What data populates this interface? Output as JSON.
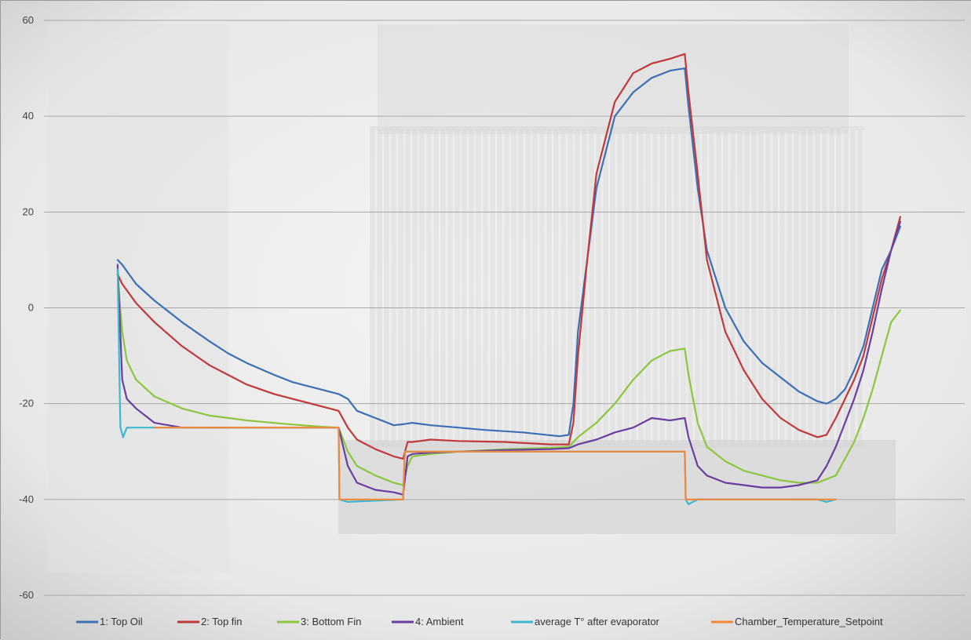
{
  "chart_data": {
    "type": "line",
    "title": "",
    "xlabel": "",
    "ylabel": "",
    "ylim": [
      -60,
      60
    ],
    "yticks": [
      60,
      40,
      20,
      0,
      -20,
      -40,
      -60
    ],
    "grid": true,
    "legend_placement": "bottom",
    "background": "faded photo of a transformer inside a test chamber",
    "x_note": "x axis unlabeled (time); x values are relative positions 0-100 along the axis",
    "series": [
      {
        "name": "1: Top Oil",
        "color": "#3d6fb5",
        "points": [
          [
            8.0,
            10
          ],
          [
            8.5,
            9
          ],
          [
            10,
            5
          ],
          [
            12,
            1.5
          ],
          [
            15,
            -3
          ],
          [
            18,
            -7
          ],
          [
            20,
            -9.5
          ],
          [
            22,
            -11.5
          ],
          [
            25,
            -14
          ],
          [
            27,
            -15.5
          ],
          [
            30,
            -17
          ],
          [
            32,
            -18
          ],
          [
            33,
            -19
          ],
          [
            34,
            -21.5
          ],
          [
            36,
            -23
          ],
          [
            38,
            -24.5
          ],
          [
            39,
            -24.3
          ],
          [
            40,
            -24
          ],
          [
            42,
            -24.5
          ],
          [
            45,
            -25
          ],
          [
            48,
            -25.5
          ],
          [
            52,
            -26
          ],
          [
            56,
            -26.8
          ],
          [
            57,
            -26.5
          ],
          [
            57.5,
            -20
          ],
          [
            58,
            -5
          ],
          [
            59,
            10
          ],
          [
            60,
            25
          ],
          [
            62,
            40
          ],
          [
            64,
            45
          ],
          [
            66,
            48
          ],
          [
            68,
            49.5
          ],
          [
            69.6,
            50
          ],
          [
            70,
            42
          ],
          [
            71,
            25
          ],
          [
            72,
            12
          ],
          [
            74,
            0
          ],
          [
            76,
            -7
          ],
          [
            78,
            -11.5
          ],
          [
            80,
            -14.5
          ],
          [
            82,
            -17.5
          ],
          [
            84,
            -19.5
          ],
          [
            85,
            -20
          ],
          [
            86,
            -19
          ],
          [
            87,
            -17
          ],
          [
            88,
            -13
          ],
          [
            89,
            -8
          ],
          [
            90,
            0
          ],
          [
            91,
            8
          ],
          [
            92,
            12
          ],
          [
            93,
            17
          ]
        ]
      },
      {
        "name": "2: Top fin",
        "color": "#c0393b",
        "points": [
          [
            8.0,
            7
          ],
          [
            8.5,
            5
          ],
          [
            10,
            1
          ],
          [
            12,
            -3
          ],
          [
            15,
            -8
          ],
          [
            18,
            -12
          ],
          [
            20,
            -14
          ],
          [
            22,
            -16
          ],
          [
            25,
            -18
          ],
          [
            28,
            -19.5
          ],
          [
            30,
            -20.5
          ],
          [
            32,
            -21.5
          ],
          [
            33,
            -25
          ],
          [
            34,
            -27.5
          ],
          [
            36,
            -29.5
          ],
          [
            38,
            -31
          ],
          [
            39,
            -31.5
          ],
          [
            39.5,
            -28
          ],
          [
            40,
            -28
          ],
          [
            42,
            -27.5
          ],
          [
            45,
            -27.8
          ],
          [
            50,
            -28
          ],
          [
            55,
            -28.5
          ],
          [
            57,
            -28.5
          ],
          [
            57.5,
            -24
          ],
          [
            58,
            -10
          ],
          [
            59,
            10
          ],
          [
            60,
            28
          ],
          [
            62,
            43
          ],
          [
            64,
            49
          ],
          [
            66,
            51
          ],
          [
            68,
            52
          ],
          [
            69.6,
            53
          ],
          [
            70,
            45
          ],
          [
            71,
            28
          ],
          [
            72,
            10
          ],
          [
            74,
            -5
          ],
          [
            76,
            -13
          ],
          [
            78,
            -19
          ],
          [
            80,
            -23
          ],
          [
            82,
            -25.5
          ],
          [
            84,
            -27
          ],
          [
            85,
            -26.5
          ],
          [
            86,
            -23
          ],
          [
            87,
            -19
          ],
          [
            88,
            -15
          ],
          [
            89,
            -10
          ],
          [
            90,
            -2
          ],
          [
            91,
            6
          ],
          [
            92,
            12
          ],
          [
            93,
            19
          ]
        ]
      },
      {
        "name": "3: Bottom Fin",
        "color": "#8cc63f",
        "points": [
          [
            8.0,
            7
          ],
          [
            8.5,
            -5
          ],
          [
            9,
            -11
          ],
          [
            10,
            -15
          ],
          [
            12,
            -18.5
          ],
          [
            15,
            -21
          ],
          [
            18,
            -22.5
          ],
          [
            22,
            -23.5
          ],
          [
            26,
            -24.2
          ],
          [
            30,
            -24.8
          ],
          [
            32,
            -25
          ],
          [
            33,
            -30
          ],
          [
            34,
            -33
          ],
          [
            36,
            -35
          ],
          [
            38,
            -36.5
          ],
          [
            39,
            -37
          ],
          [
            39.5,
            -33
          ],
          [
            40,
            -31
          ],
          [
            42,
            -30.5
          ],
          [
            45,
            -30
          ],
          [
            50,
            -29.5
          ],
          [
            55,
            -29.2
          ],
          [
            57,
            -29
          ],
          [
            58,
            -27
          ],
          [
            60,
            -24
          ],
          [
            62,
            -20
          ],
          [
            64,
            -15
          ],
          [
            66,
            -11
          ],
          [
            68,
            -9
          ],
          [
            69.6,
            -8.5
          ],
          [
            70,
            -14
          ],
          [
            71,
            -24
          ],
          [
            72,
            -29
          ],
          [
            74,
            -32
          ],
          [
            76,
            -34
          ],
          [
            78,
            -35
          ],
          [
            80,
            -36
          ],
          [
            82,
            -36.5
          ],
          [
            84,
            -36.5
          ],
          [
            86,
            -35
          ],
          [
            88,
            -28
          ],
          [
            89,
            -23
          ],
          [
            90,
            -17
          ],
          [
            91,
            -10
          ],
          [
            92,
            -3
          ],
          [
            93,
            -0.5
          ]
        ]
      },
      {
        "name": "4: Ambient",
        "color": "#6a3ea1",
        "points": [
          [
            8.0,
            9
          ],
          [
            8.5,
            -15
          ],
          [
            9,
            -19
          ],
          [
            10,
            -21
          ],
          [
            12,
            -24
          ],
          [
            15,
            -25
          ],
          [
            20,
            -25
          ],
          [
            25,
            -25
          ],
          [
            30,
            -25
          ],
          [
            32,
            -25
          ],
          [
            33,
            -33
          ],
          [
            34,
            -36.5
          ],
          [
            36,
            -38
          ],
          [
            38,
            -38.5
          ],
          [
            39,
            -39
          ],
          [
            39.5,
            -31
          ],
          [
            40,
            -30.5
          ],
          [
            42,
            -30.2
          ],
          [
            45,
            -30
          ],
          [
            50,
            -29.7
          ],
          [
            55,
            -29.5
          ],
          [
            57,
            -29.3
          ],
          [
            58,
            -28.5
          ],
          [
            60,
            -27.5
          ],
          [
            62,
            -26
          ],
          [
            64,
            -25
          ],
          [
            66,
            -23
          ],
          [
            68,
            -23.5
          ],
          [
            69.6,
            -23
          ],
          [
            70,
            -27
          ],
          [
            71,
            -33
          ],
          [
            72,
            -35
          ],
          [
            74,
            -36.5
          ],
          [
            76,
            -37
          ],
          [
            78,
            -37.5
          ],
          [
            80,
            -37.5
          ],
          [
            82,
            -37
          ],
          [
            84,
            -36
          ],
          [
            85,
            -33
          ],
          [
            86,
            -29
          ],
          [
            87,
            -24
          ],
          [
            88,
            -19
          ],
          [
            89,
            -13
          ],
          [
            90,
            -5
          ],
          [
            91,
            4
          ],
          [
            92,
            12
          ],
          [
            93,
            18
          ]
        ]
      },
      {
        "name": "average T° after evaporator",
        "color": "#3fb8cf",
        "points": [
          [
            8.0,
            8
          ],
          [
            8.3,
            -25
          ],
          [
            8.6,
            -27
          ],
          [
            9,
            -25
          ],
          [
            12,
            -25
          ],
          [
            20,
            -25
          ],
          [
            30,
            -25
          ],
          [
            32,
            -25
          ],
          [
            32.1,
            -40
          ],
          [
            33,
            -40.5
          ],
          [
            39,
            -40
          ],
          [
            39.2,
            -30
          ],
          [
            45,
            -30
          ],
          [
            55,
            -30
          ],
          [
            69.6,
            -30
          ],
          [
            69.7,
            -40
          ],
          [
            70,
            -41
          ],
          [
            71,
            -40
          ],
          [
            80,
            -40
          ],
          [
            84,
            -40
          ],
          [
            85,
            -40.5
          ],
          [
            86,
            -40
          ]
        ]
      },
      {
        "name": "Chamber_Temperature_Setpoint",
        "color": "#f0883a",
        "points": [
          [
            12,
            -25
          ],
          [
            32,
            -25
          ],
          [
            32.1,
            -40
          ],
          [
            39,
            -40
          ],
          [
            39.2,
            -30
          ],
          [
            69.6,
            -30
          ],
          [
            69.7,
            -40
          ],
          [
            86,
            -40
          ]
        ]
      }
    ]
  }
}
